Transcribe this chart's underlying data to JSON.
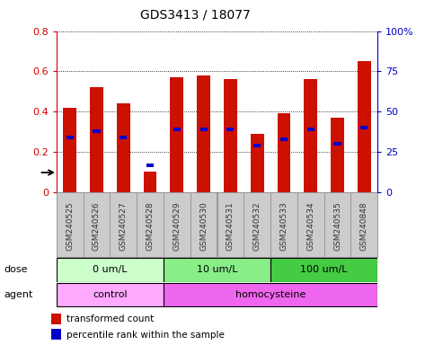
{
  "title": "GDS3413 / 18077",
  "samples": [
    "GSM240525",
    "GSM240526",
    "GSM240527",
    "GSM240528",
    "GSM240529",
    "GSM240530",
    "GSM240531",
    "GSM240532",
    "GSM240533",
    "GSM240534",
    "GSM240535",
    "GSM240848"
  ],
  "red_values": [
    0.42,
    0.52,
    0.44,
    0.1,
    0.57,
    0.58,
    0.56,
    0.29,
    0.39,
    0.56,
    0.37,
    0.65
  ],
  "blue_values": [
    0.27,
    0.3,
    0.27,
    0.13,
    0.31,
    0.31,
    0.31,
    0.23,
    0.26,
    0.31,
    0.24,
    0.32
  ],
  "dose_labels": [
    "0 um/L",
    "10 um/L",
    "100 um/L"
  ],
  "dose_ranges": [
    [
      0,
      4
    ],
    [
      4,
      8
    ],
    [
      8,
      12
    ]
  ],
  "dose_colors": [
    "#ccffcc",
    "#88ee88",
    "#44cc44"
  ],
  "agent_labels": [
    "control",
    "homocysteine"
  ],
  "agent_ranges": [
    [
      0,
      4
    ],
    [
      4,
      12
    ]
  ],
  "agent_colors": [
    "#ffaaff",
    "#ee66ee"
  ],
  "ylim_left": [
    0,
    0.8
  ],
  "ylim_right": [
    0,
    100
  ],
  "yticks_left": [
    0,
    0.2,
    0.4,
    0.6,
    0.8
  ],
  "yticks_right": [
    0,
    25,
    50,
    75,
    100
  ],
  "ytick_labels_left": [
    "0",
    "0.2",
    "0.4",
    "0.6",
    "0.8"
  ],
  "ytick_labels_right": [
    "0",
    "25",
    "50",
    "75",
    "100%"
  ],
  "left_axis_color": "#cc0000",
  "right_axis_color": "#0000cc",
  "red_color": "#cc1100",
  "blue_color": "#0000cc",
  "label_transformed": "transformed count",
  "label_percentile": "percentile rank within the sample",
  "xtick_bg_color": "#cccccc",
  "xtick_border_color": "#999999"
}
